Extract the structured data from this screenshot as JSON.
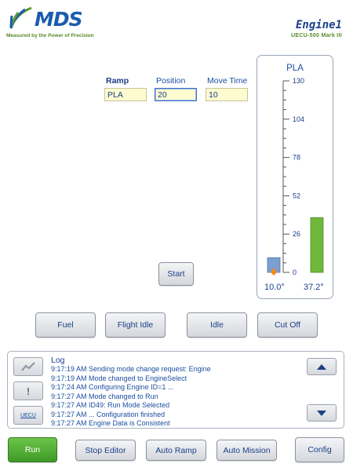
{
  "brand": {
    "logo_text": "MDS",
    "tagline": "Measured by the Power of Precision"
  },
  "engine": {
    "title": "Engine1",
    "subtitle": "UECU-500 Mark III"
  },
  "ramp": {
    "ramp_label": "Ramp",
    "position_label": "Position",
    "move_time_label": "Move Time",
    "ramp_value": "PLA",
    "position_value": "20",
    "move_time_value": "10",
    "start_label": "Start"
  },
  "gauge": {
    "title": "PLA",
    "ticks": [
      "130",
      "104",
      "78",
      "52",
      "26",
      "0"
    ],
    "scale_min": 0,
    "scale_max": 130,
    "bar_blue_value": 10.0,
    "bar_green_value": 37.2,
    "left_readout": "10.0°",
    "right_readout": "37.2°",
    "blue_color": "#7b9fcf",
    "green_color": "#6fb83a",
    "marker_color": "#f08a1c"
  },
  "mode_buttons": {
    "fuel": "Fuel",
    "flight_idle": "Flight Idle",
    "idle": "Idle",
    "cut_off": "Cut Off"
  },
  "log": {
    "title": "Log",
    "lines": [
      "9:17:19 AM Sending mode change request: Engine",
      "9:17:19 AM Mode changed to EngineSelect",
      "9:17:24 AM Configuring Engine ID=1 ...",
      "9:17:27 AM Mode changed to Run",
      "9:17:27 AM ID49: Run Mode Selected",
      "9:17:27 AM ... Configuration finished",
      "9:17:27 AM Engine Data is Consistent"
    ],
    "side_icons": [
      "wave-icon",
      "alert-icon",
      "uecu-icon"
    ],
    "uecu_label": "UECU"
  },
  "bottom_buttons": {
    "run": "Run",
    "stop_editor": "Stop Editor",
    "auto_ramp": "Auto Ramp",
    "auto_mission": "Auto Mission",
    "config": "Config"
  },
  "colors": {
    "accent_blue": "#1b3f8a",
    "brand_green": "#5a8a2a",
    "run_green": "#4ea72f"
  }
}
